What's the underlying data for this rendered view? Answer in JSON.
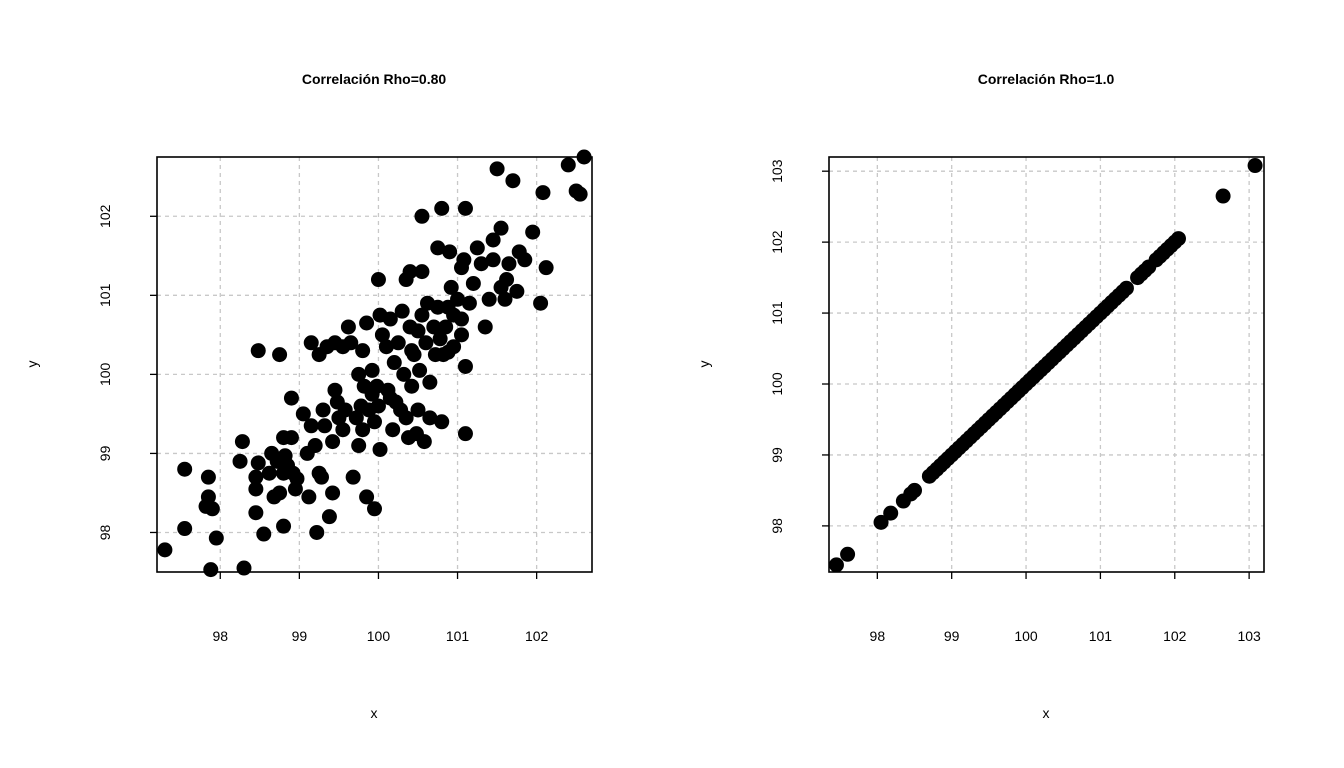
{
  "chart_data": [
    {
      "type": "scatter",
      "title": "Correlación Rho=0.80",
      "xlabel": "x",
      "ylabel": "y",
      "xlim": [
        97.2,
        102.7
      ],
      "ylim": [
        97.5,
        102.75
      ],
      "xticks": [
        98,
        99,
        100,
        101,
        102
      ],
      "yticks": [
        98,
        99,
        100,
        101,
        102
      ],
      "grid": true,
      "point_color": "#000000",
      "points": [
        [
          97.3,
          97.78
        ],
        [
          97.55,
          98.8
        ],
        [
          97.55,
          98.05
        ],
        [
          97.85,
          98.7
        ],
        [
          97.85,
          98.45
        ],
        [
          97.82,
          98.33
        ],
        [
          97.9,
          98.3
        ],
        [
          97.95,
          97.93
        ],
        [
          97.88,
          97.53
        ],
        [
          98.3,
          97.55
        ],
        [
          98.25,
          98.9
        ],
        [
          98.28,
          99.15
        ],
        [
          98.45,
          98.7
        ],
        [
          98.45,
          98.55
        ],
        [
          98.48,
          98.88
        ],
        [
          98.45,
          98.25
        ],
        [
          98.55,
          97.98
        ],
        [
          98.62,
          98.75
        ],
        [
          98.65,
          99.0
        ],
        [
          98.68,
          98.45
        ],
        [
          98.72,
          98.9
        ],
        [
          98.75,
          98.5
        ],
        [
          98.8,
          98.75
        ],
        [
          98.8,
          98.08
        ],
        [
          98.82,
          98.97
        ],
        [
          98.8,
          99.2
        ],
        [
          98.85,
          98.85
        ],
        [
          98.9,
          99.2
        ],
        [
          98.92,
          98.75
        ],
        [
          98.95,
          98.55
        ],
        [
          98.97,
          98.68
        ],
        [
          98.75,
          100.25
        ],
        [
          98.48,
          100.3
        ],
        [
          98.9,
          99.7
        ],
        [
          99.05,
          99.5
        ],
        [
          99.1,
          99.0
        ],
        [
          99.12,
          98.45
        ],
        [
          99.15,
          99.35
        ],
        [
          99.2,
          99.1
        ],
        [
          99.15,
          100.4
        ],
        [
          99.25,
          98.75
        ],
        [
          99.22,
          98.0
        ],
        [
          99.28,
          98.7
        ],
        [
          99.3,
          99.55
        ],
        [
          99.32,
          99.35
        ],
        [
          99.25,
          100.25
        ],
        [
          99.35,
          100.35
        ],
        [
          99.38,
          98.2
        ],
        [
          99.42,
          98.5
        ],
        [
          99.42,
          99.15
        ],
        [
          99.45,
          99.8
        ],
        [
          99.5,
          99.45
        ],
        [
          99.48,
          99.65
        ],
        [
          99.45,
          100.4
        ],
        [
          99.55,
          99.3
        ],
        [
          99.58,
          99.55
        ],
        [
          99.62,
          100.6
        ],
        [
          99.65,
          100.4
        ],
        [
          99.68,
          98.7
        ],
        [
          99.72,
          99.45
        ],
        [
          99.75,
          100.0
        ],
        [
          99.75,
          99.1
        ],
        [
          99.78,
          99.6
        ],
        [
          99.8,
          99.3
        ],
        [
          99.82,
          99.85
        ],
        [
          99.85,
          98.45
        ],
        [
          99.8,
          100.3
        ],
        [
          99.85,
          100.65
        ],
        [
          99.88,
          99.55
        ],
        [
          99.92,
          99.75
        ],
        [
          99.92,
          100.05
        ],
        [
          99.95,
          99.4
        ],
        [
          99.95,
          98.3
        ],
        [
          100.0,
          99.6
        ],
        [
          100.02,
          99.05
        ],
        [
          100.05,
          100.5
        ],
        [
          100.0,
          101.2
        ],
        [
          100.1,
          100.35
        ],
        [
          100.12,
          99.8
        ],
        [
          100.15,
          100.7
        ],
        [
          100.15,
          99.7
        ],
        [
          100.18,
          99.3
        ],
        [
          100.2,
          100.15
        ],
        [
          100.22,
          99.65
        ],
        [
          100.25,
          100.4
        ],
        [
          100.28,
          99.55
        ],
        [
          100.3,
          100.8
        ],
        [
          100.32,
          100.0
        ],
        [
          100.35,
          99.45
        ],
        [
          100.35,
          101.2
        ],
        [
          100.38,
          99.2
        ],
        [
          100.4,
          100.6
        ],
        [
          100.42,
          99.85
        ],
        [
          100.4,
          101.3
        ],
        [
          100.45,
          100.25
        ],
        [
          100.48,
          99.25
        ],
        [
          100.5,
          100.55
        ],
        [
          100.5,
          99.55
        ],
        [
          100.52,
          100.05
        ],
        [
          100.55,
          100.75
        ],
        [
          100.55,
          101.3
        ],
        [
          100.55,
          102.0
        ],
        [
          100.58,
          99.15
        ],
        [
          100.6,
          100.4
        ],
        [
          100.62,
          100.9
        ],
        [
          100.65,
          99.45
        ],
        [
          100.65,
          99.9
        ],
        [
          100.7,
          100.6
        ],
        [
          100.72,
          100.25
        ],
        [
          100.75,
          100.85
        ],
        [
          100.75,
          101.6
        ],
        [
          100.78,
          100.45
        ],
        [
          100.8,
          99.4
        ],
        [
          100.82,
          100.25
        ],
        [
          100.85,
          100.6
        ],
        [
          100.88,
          100.85
        ],
        [
          100.9,
          101.55
        ],
        [
          100.92,
          101.1
        ],
        [
          100.95,
          100.35
        ],
        [
          100.95,
          100.75
        ],
        [
          101.0,
          100.95
        ],
        [
          101.05,
          100.5
        ],
        [
          101.05,
          101.35
        ],
        [
          101.08,
          101.45
        ],
        [
          101.1,
          102.1
        ],
        [
          101.1,
          99.25
        ],
        [
          101.1,
          100.1
        ],
        [
          101.15,
          100.9
        ],
        [
          101.2,
          101.15
        ],
        [
          101.25,
          101.6
        ],
        [
          101.3,
          101.4
        ],
        [
          101.35,
          100.6
        ],
        [
          101.4,
          100.95
        ],
        [
          101.45,
          101.7
        ],
        [
          101.45,
          101.45
        ],
        [
          101.5,
          102.6
        ],
        [
          101.55,
          101.1
        ],
        [
          101.55,
          101.85
        ],
        [
          101.6,
          100.95
        ],
        [
          101.62,
          101.2
        ],
        [
          101.65,
          101.4
        ],
        [
          101.7,
          102.45
        ],
        [
          101.75,
          101.05
        ],
        [
          101.78,
          101.55
        ],
        [
          101.85,
          101.45
        ],
        [
          101.95,
          101.8
        ],
        [
          102.05,
          100.9
        ],
        [
          102.08,
          102.3
        ],
        [
          102.12,
          101.35
        ],
        [
          102.4,
          102.65
        ],
        [
          102.5,
          102.32
        ],
        [
          102.55,
          102.28
        ],
        [
          102.6,
          102.75
        ],
        [
          100.8,
          102.1
        ],
        [
          100.02,
          100.75
        ],
        [
          99.55,
          100.35
        ],
        [
          99.98,
          99.85
        ],
        [
          100.42,
          100.3
        ],
        [
          100.88,
          100.28
        ],
        [
          101.05,
          100.7
        ]
      ]
    },
    {
      "type": "scatter",
      "title": "Correlación Rho=1.0",
      "xlabel": "x",
      "ylabel": "y",
      "xlim": [
        97.35,
        103.2
      ],
      "ylim": [
        97.35,
        103.2
      ],
      "xticks": [
        98,
        99,
        100,
        101,
        102,
        103
      ],
      "yticks": [
        98,
        99,
        100,
        101,
        102,
        103
      ],
      "grid": true,
      "point_color": "#000000",
      "points": [
        [
          97.45,
          97.45
        ],
        [
          97.6,
          97.6
        ],
        [
          98.05,
          98.05
        ],
        [
          98.18,
          98.18
        ],
        [
          98.35,
          98.35
        ],
        [
          98.45,
          98.45
        ],
        [
          98.5,
          98.5
        ],
        [
          98.7,
          98.7
        ],
        [
          98.75,
          98.75
        ],
        [
          98.8,
          98.8
        ],
        [
          98.85,
          98.85
        ],
        [
          98.9,
          98.9
        ],
        [
          98.95,
          98.95
        ],
        [
          99.0,
          99.0
        ],
        [
          99.05,
          99.05
        ],
        [
          99.1,
          99.1
        ],
        [
          99.15,
          99.15
        ],
        [
          99.2,
          99.2
        ],
        [
          99.25,
          99.25
        ],
        [
          99.3,
          99.3
        ],
        [
          99.35,
          99.35
        ],
        [
          99.4,
          99.4
        ],
        [
          99.45,
          99.45
        ],
        [
          99.5,
          99.5
        ],
        [
          99.55,
          99.55
        ],
        [
          99.6,
          99.6
        ],
        [
          99.65,
          99.65
        ],
        [
          99.7,
          99.7
        ],
        [
          99.75,
          99.75
        ],
        [
          99.8,
          99.8
        ],
        [
          99.85,
          99.85
        ],
        [
          99.9,
          99.9
        ],
        [
          99.95,
          99.95
        ],
        [
          100.0,
          100.0
        ],
        [
          100.05,
          100.05
        ],
        [
          100.1,
          100.1
        ],
        [
          100.15,
          100.15
        ],
        [
          100.2,
          100.2
        ],
        [
          100.25,
          100.25
        ],
        [
          100.3,
          100.3
        ],
        [
          100.35,
          100.35
        ],
        [
          100.4,
          100.4
        ],
        [
          100.45,
          100.45
        ],
        [
          100.5,
          100.5
        ],
        [
          100.55,
          100.55
        ],
        [
          100.6,
          100.6
        ],
        [
          100.65,
          100.65
        ],
        [
          100.7,
          100.7
        ],
        [
          100.75,
          100.75
        ],
        [
          100.8,
          100.8
        ],
        [
          100.85,
          100.85
        ],
        [
          100.9,
          100.9
        ],
        [
          100.95,
          100.95
        ],
        [
          101.0,
          101.0
        ],
        [
          101.05,
          101.05
        ],
        [
          101.1,
          101.1
        ],
        [
          101.15,
          101.15
        ],
        [
          101.2,
          101.2
        ],
        [
          101.25,
          101.25
        ],
        [
          101.3,
          101.3
        ],
        [
          101.35,
          101.35
        ],
        [
          101.5,
          101.5
        ],
        [
          101.55,
          101.55
        ],
        [
          101.6,
          101.6
        ],
        [
          101.65,
          101.65
        ],
        [
          101.75,
          101.75
        ],
        [
          101.8,
          101.8
        ],
        [
          101.85,
          101.85
        ],
        [
          101.9,
          101.9
        ],
        [
          101.95,
          101.95
        ],
        [
          102.0,
          102.0
        ],
        [
          102.05,
          102.05
        ],
        [
          102.65,
          102.65
        ],
        [
          103.08,
          103.08
        ]
      ]
    }
  ]
}
